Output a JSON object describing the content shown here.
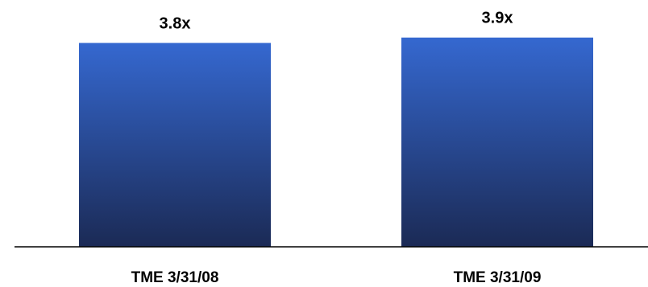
{
  "chart_data": {
    "type": "bar",
    "categories": [
      "TME 3/31/08",
      "TME 3/31/09"
    ],
    "values": [
      3.8,
      3.9
    ],
    "data_labels": [
      "3.8x",
      "3.9x"
    ],
    "title": "",
    "xlabel": "",
    "ylabel": "",
    "ylim": [
      0,
      4.6
    ],
    "grid": false,
    "legend": "none",
    "colors": {
      "bar_top": "#3568d0",
      "bar_bottom": "#1b2a55",
      "axis": "#000000"
    }
  }
}
